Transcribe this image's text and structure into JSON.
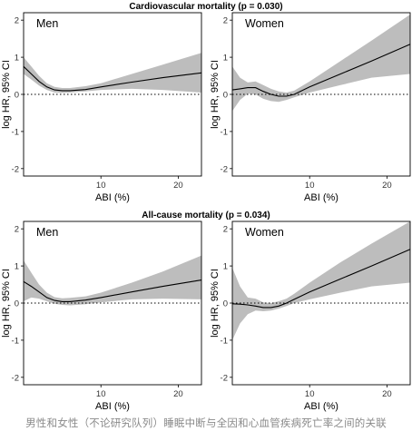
{
  "figure_caption": "男性和女性（不论研究队列）睡眠中断与全因和心血管疾病死亡率之间的关联",
  "colors": {
    "band": "#bdbdbd",
    "line": "#000000",
    "panel_border": "#000000"
  },
  "chart_data": [
    {
      "type": "line",
      "title": "Cardiovascular mortality (p = 0.030)",
      "panel_label": "Men",
      "xlabel": "ABI (%)",
      "ylabel": "log HR, 95% CI",
      "xlim": [
        0,
        23
      ],
      "ylim": [
        -2.2,
        2.2
      ],
      "x_ticks": [
        10,
        20
      ],
      "y_ticks": [
        -2,
        -1,
        0,
        1,
        2
      ],
      "reference_line": 0,
      "series": [
        {
          "x": [
            0,
            1,
            2,
            3,
            4,
            5,
            6,
            8,
            10,
            14,
            18,
            23
          ],
          "y": [
            0.75,
            0.55,
            0.35,
            0.2,
            0.12,
            0.1,
            0.1,
            0.13,
            0.2,
            0.33,
            0.45,
            0.58
          ],
          "lower": [
            0.55,
            0.4,
            0.24,
            0.12,
            0.05,
            0.04,
            0.05,
            0.08,
            0.12,
            0.15,
            0.12,
            0.05
          ],
          "upper": [
            1.0,
            0.75,
            0.5,
            0.3,
            0.2,
            0.17,
            0.17,
            0.22,
            0.3,
            0.55,
            0.8,
            1.12
          ]
        }
      ]
    },
    {
      "type": "line",
      "title": "Cardiovascular mortality (p = 0.030)",
      "panel_label": "Women",
      "xlabel": "ABI (%)",
      "ylabel": "log HR, 95% CI",
      "xlim": [
        0,
        23
      ],
      "ylim": [
        -2.2,
        2.2
      ],
      "x_ticks": [
        10,
        20
      ],
      "y_ticks": [
        -2,
        -1,
        0,
        1,
        2
      ],
      "reference_line": 0,
      "series": [
        {
          "x": [
            0,
            1,
            2,
            3,
            4,
            5,
            6,
            7,
            8,
            10,
            14,
            18,
            23
          ],
          "y": [
            0.12,
            0.15,
            0.18,
            0.18,
            0.08,
            0.0,
            -0.05,
            -0.05,
            0.0,
            0.2,
            0.55,
            0.9,
            1.35
          ],
          "lower": [
            -0.45,
            -0.15,
            0.02,
            0.0,
            -0.12,
            -0.18,
            -0.2,
            -0.15,
            -0.08,
            0.05,
            0.25,
            0.45,
            0.55
          ],
          "upper": [
            0.75,
            0.45,
            0.32,
            0.35,
            0.25,
            0.15,
            0.08,
            0.05,
            0.1,
            0.35,
            0.9,
            1.45,
            2.15
          ]
        }
      ]
    },
    {
      "type": "line",
      "title": "All-cause mortality (p = 0.034)",
      "panel_label": "Men",
      "xlabel": "ABI (%)",
      "ylabel": "log HR, 95% CI",
      "xlim": [
        0,
        23
      ],
      "ylim": [
        -2.2,
        2.2
      ],
      "x_ticks": [
        10,
        20
      ],
      "y_ticks": [
        -2,
        -1,
        0,
        1,
        2
      ],
      "reference_line": 0,
      "series": [
        {
          "x": [
            0,
            1,
            2,
            3,
            4,
            5,
            6,
            8,
            10,
            14,
            18,
            23
          ],
          "y": [
            0.58,
            0.45,
            0.3,
            0.15,
            0.07,
            0.04,
            0.04,
            0.08,
            0.15,
            0.3,
            0.45,
            0.62
          ],
          "lower": [
            0.05,
            0.15,
            0.12,
            0.05,
            -0.02,
            -0.05,
            -0.06,
            -0.03,
            0.02,
            0.1,
            0.12,
            0.1
          ],
          "upper": [
            1.15,
            0.82,
            0.5,
            0.28,
            0.16,
            0.13,
            0.14,
            0.18,
            0.28,
            0.55,
            0.85,
            1.28
          ]
        }
      ]
    },
    {
      "type": "line",
      "title": "All-cause mortality (p = 0.034)",
      "panel_label": "Women",
      "xlabel": "ABI (%)",
      "ylabel": "log HR, 95% CI",
      "xlim": [
        0,
        23
      ],
      "ylim": [
        -2.2,
        2.2
      ],
      "x_ticks": [
        10,
        20
      ],
      "y_ticks": [
        -2,
        -1,
        0,
        1,
        2
      ],
      "reference_line": 0,
      "series": [
        {
          "x": [
            0,
            1,
            2,
            3,
            4,
            5,
            6,
            7,
            8,
            10,
            14,
            18,
            23
          ],
          "y": [
            -0.02,
            -0.03,
            -0.05,
            -0.08,
            -0.12,
            -0.12,
            -0.08,
            0.0,
            0.1,
            0.3,
            0.65,
            1.0,
            1.45
          ],
          "lower": [
            -1.0,
            -0.55,
            -0.3,
            -0.2,
            -0.22,
            -0.2,
            -0.15,
            -0.08,
            0.0,
            0.1,
            0.28,
            0.45,
            0.55
          ],
          "upper": [
            0.95,
            0.45,
            0.15,
            0.12,
            0.02,
            0.0,
            0.05,
            0.12,
            0.25,
            0.55,
            1.1,
            1.6,
            2.2
          ]
        }
      ]
    }
  ]
}
